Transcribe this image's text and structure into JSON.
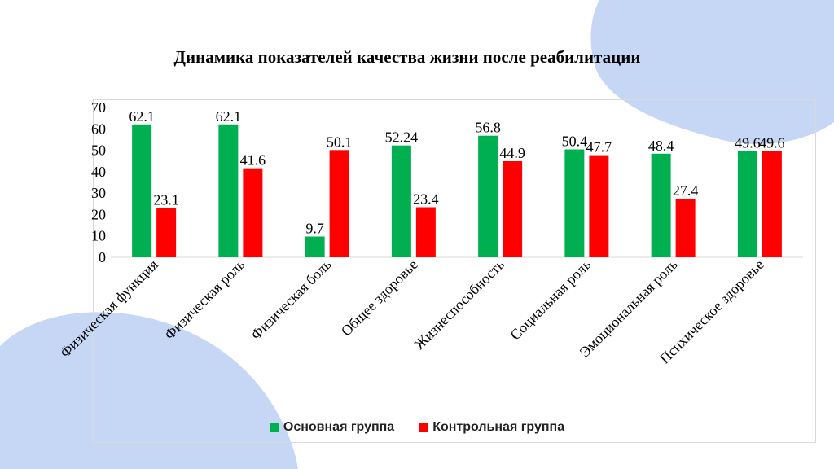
{
  "chart_data": {
    "type": "bar",
    "title": "Динамика показателей качества жизни после реабилитации",
    "categories": [
      "Физическая функция",
      "Физическая роль",
      "Физическая боль",
      "Общее здоровье",
      "Жизнеспособность",
      "Социальная роль",
      "Эмоциональная роль",
      "Психическое здоровье"
    ],
    "series": [
      {
        "name": "Основная группа",
        "color": "#00b050",
        "values": [
          62.1,
          62.1,
          9.7,
          52.24,
          56.8,
          50.4,
          48.4,
          49.6
        ]
      },
      {
        "name": "Контрольная группа",
        "color": "#ff0000",
        "values": [
          23.1,
          41.6,
          50.1,
          23.4,
          44.9,
          47.7,
          27.4,
          49.6
        ]
      }
    ],
    "value_labels": [
      [
        "62.1",
        "62.1",
        "9.7",
        "52.24",
        "56.8",
        "50.4",
        "48.4",
        "49.6"
      ],
      [
        "23.1",
        "41.6",
        "50.1",
        "23.4",
        "44.9",
        "47.7",
        "27.4",
        "49.6"
      ]
    ],
    "ylim": [
      0,
      70
    ],
    "yticks": [
      0,
      10,
      20,
      30,
      40,
      50,
      60,
      70
    ],
    "grid": false,
    "legend_position": "bottom",
    "background_blob_color": "#c6d6f5"
  }
}
